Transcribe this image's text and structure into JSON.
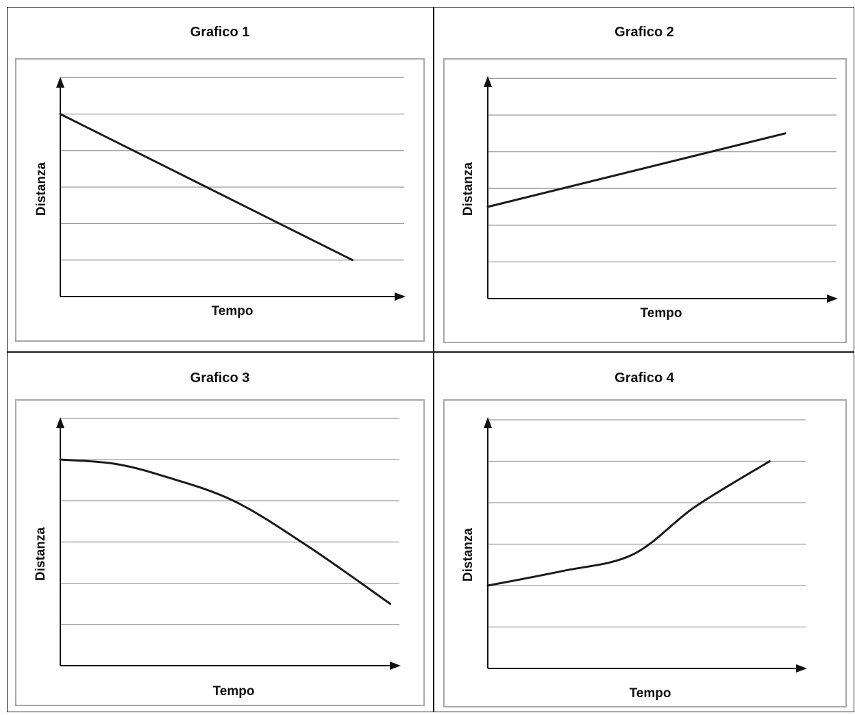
{
  "chart_data": [
    {
      "type": "line",
      "title": "Grafico 1",
      "xlabel": "Tempo",
      "ylabel": "Distanza",
      "xlim": [
        0,
        10
      ],
      "ylim": [
        0,
        6
      ],
      "grid": true,
      "series": [
        {
          "x": [
            0,
            8
          ],
          "y": [
            5,
            1
          ]
        }
      ]
    },
    {
      "type": "line",
      "title": "Grafico 2",
      "xlabel": "Tempo",
      "ylabel": "Distanza",
      "xlim": [
        0,
        10
      ],
      "ylim": [
        0,
        6
      ],
      "grid": true,
      "series": [
        {
          "x": [
            0,
            8.1
          ],
          "y": [
            2.5,
            4.5
          ]
        }
      ]
    },
    {
      "type": "line",
      "title": "Grafico 3",
      "xlabel": "Tempo",
      "ylabel": "Distanza",
      "xlim": [
        0,
        10
      ],
      "ylim": [
        0,
        6
      ],
      "grid": true,
      "series": [
        {
          "x": [
            0,
            1.3,
            2.5,
            4.2,
            6,
            8
          ],
          "y": [
            5,
            4.9,
            4.6,
            4,
            2.9,
            1.5
          ]
        }
      ]
    },
    {
      "type": "line",
      "title": "Grafico 4",
      "xlabel": "Tempo",
      "ylabel": "Distanza",
      "xlim": [
        0,
        10
      ],
      "ylim": [
        0,
        6
      ],
      "grid": true,
      "series": [
        {
          "x": [
            0,
            1.8,
            3.5,
            5,
            6.8
          ],
          "y": [
            2,
            2.35,
            2.75,
            3.9,
            5
          ]
        }
      ]
    }
  ]
}
